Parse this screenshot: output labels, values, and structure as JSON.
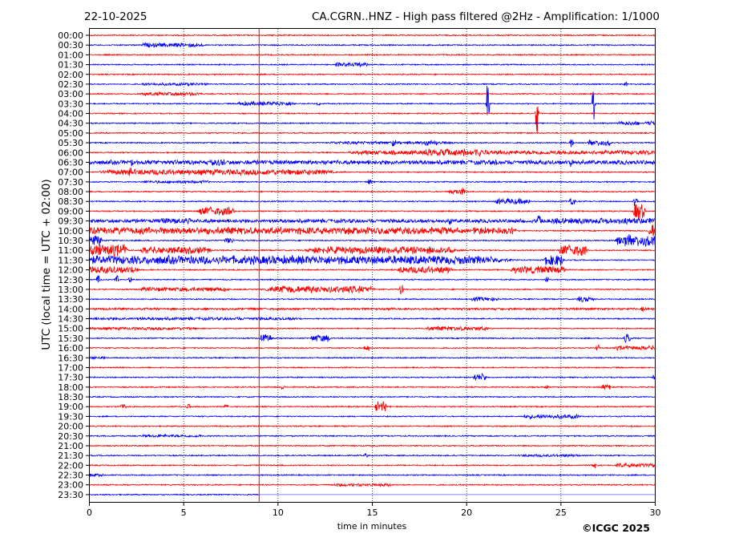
{
  "header": {
    "date": "22-10-2025",
    "title": "CA.CGRN..HNZ - High pass filtered @2Hz - Amplification: 1/1000"
  },
  "footer": {
    "copyright": "©ICGC 2025"
  },
  "chart_data": {
    "type": "line",
    "subtype": "helicorder",
    "title": "CA.CGRN..HNZ - High pass filtered @2Hz - Amplification: 1/1000",
    "xlabel": "time in minutes",
    "ylabel": "UTC (local time = UTC + 02:00)",
    "xlim": [
      0,
      30
    ],
    "xticks": [
      "0",
      "5",
      "10",
      "15",
      "20",
      "25",
      "30"
    ],
    "grid": "vertical dotted every 5 minutes",
    "current_time_marker_min": 9,
    "row_labels": [
      "00:00",
      "00:30",
      "01:00",
      "01:30",
      "02:00",
      "02:30",
      "03:00",
      "03:30",
      "04:00",
      "04:30",
      "05:00",
      "05:30",
      "06:00",
      "06:30",
      "07:00",
      "07:30",
      "08:00",
      "08:30",
      "09:00",
      "09:30",
      "10:00",
      "10:30",
      "11:00",
      "11:30",
      "12:00",
      "12:30",
      "13:00",
      "13:30",
      "14:00",
      "14:30",
      "15:00",
      "15:30",
      "16:00",
      "16:30",
      "17:00",
      "17:30",
      "18:00",
      "18:30",
      "19:00",
      "19:30",
      "20:00",
      "20:30",
      "21:00",
      "21:30",
      "22:00",
      "22:30",
      "23:00",
      "23:30"
    ],
    "colors": {
      "even_rows": "#ff0000",
      "odd_rows": "#0000ff",
      "marker": "#ff0000"
    },
    "events_format": [
      "row",
      "start_min",
      "end_min",
      "amplitude"
    ],
    "events": [
      [
        1,
        2.9,
        5.9,
        3
      ],
      [
        3,
        13.1,
        14.8,
        3
      ],
      [
        5,
        2.9,
        6.1,
        2
      ],
      [
        5,
        28.4,
        28.5,
        3
      ],
      [
        6,
        2.9,
        5.8,
        2.5
      ],
      [
        7,
        8.0,
        10.8,
        3
      ],
      [
        7,
        12.1,
        12.2,
        3
      ],
      [
        7,
        21.1,
        21.15,
        36
      ],
      [
        7,
        26.7,
        26.75,
        29
      ],
      [
        8,
        23.7,
        23.75,
        35
      ],
      [
        9,
        28.1,
        29.1,
        3
      ],
      [
        9,
        29.5,
        30,
        3
      ],
      [
        11,
        12.9,
        19.0,
        2
      ],
      [
        11,
        16.1,
        16.2,
        8
      ],
      [
        11,
        17.8,
        18.4,
        4
      ],
      [
        11,
        25.5,
        25.6,
        8
      ],
      [
        11,
        26.5,
        27.6,
        4
      ],
      [
        12,
        14.6,
        30,
        3
      ],
      [
        12,
        17.8,
        20.8,
        5
      ],
      [
        13,
        0,
        30,
        3
      ],
      [
        13,
        2.2,
        2.3,
        6
      ],
      [
        13,
        6.5,
        7.2,
        5
      ],
      [
        13,
        21.5,
        21.6,
        6
      ],
      [
        13,
        25.5,
        25.6,
        7
      ],
      [
        14,
        1.2,
        12.3,
        4
      ],
      [
        14,
        2.1,
        2.2,
        8
      ],
      [
        15,
        2.9,
        6.3,
        2
      ],
      [
        15,
        14.8,
        14.9,
        6
      ],
      [
        16,
        19.1,
        19.9,
        3
      ],
      [
        16,
        19.7,
        19.8,
        10
      ],
      [
        17,
        21.6,
        23.3,
        4
      ],
      [
        17,
        25.5,
        25.7,
        6
      ],
      [
        17,
        28.9,
        29.0,
        10
      ],
      [
        18,
        5.9,
        7.6,
        6
      ],
      [
        18,
        28.9,
        29.4,
        12
      ],
      [
        19,
        0,
        30,
        2.5
      ],
      [
        19,
        3.8,
        5.5,
        4
      ],
      [
        19,
        19.1,
        19.2,
        8
      ],
      [
        19,
        23.8,
        23.9,
        10
      ],
      [
        19,
        24.6,
        30,
        4
      ],
      [
        20,
        0,
        19.1,
        5
      ],
      [
        20,
        20.4,
        22.5,
        5
      ],
      [
        20,
        29.7,
        30,
        10
      ],
      [
        21,
        0,
        0.6,
        8
      ],
      [
        21,
        7.2,
        7.6,
        4
      ],
      [
        21,
        28.0,
        30,
        8
      ],
      [
        22,
        0,
        1.9,
        8
      ],
      [
        22,
        2.9,
        6.3,
        5
      ],
      [
        22,
        11.9,
        19.1,
        5
      ],
      [
        22,
        25.0,
        26.3,
        8
      ],
      [
        23,
        0,
        20.8,
        6
      ],
      [
        23,
        24.2,
        25.1,
        8
      ],
      [
        24,
        0,
        2.5,
        5
      ],
      [
        24,
        16.5,
        19.1,
        5
      ],
      [
        24,
        22.5,
        25.1,
        5
      ],
      [
        25,
        0.4,
        0.5,
        6
      ],
      [
        25,
        1.4,
        1.5,
        6
      ],
      [
        25,
        2.1,
        2.2,
        5
      ],
      [
        25,
        24.2,
        24.3,
        6
      ],
      [
        26,
        2.9,
        7.2,
        3
      ],
      [
        26,
        9.7,
        14.8,
        5
      ],
      [
        26,
        16.5,
        16.6,
        8
      ],
      [
        27,
        20.3,
        21.6,
        3
      ],
      [
        27,
        25.9,
        26.7,
        4
      ],
      [
        28,
        0,
        30,
        1.5
      ],
      [
        28,
        29.3,
        29.4,
        4
      ],
      [
        29,
        0.4,
        10.8,
        2
      ],
      [
        30,
        0,
        5.5,
        2
      ],
      [
        30,
        18.0,
        21.0,
        3
      ],
      [
        31,
        9.1,
        9.6,
        5
      ],
      [
        31,
        11.8,
        12.7,
        5
      ],
      [
        31,
        28.4,
        28.7,
        6
      ],
      [
        32,
        14.6,
        14.8,
        5
      ],
      [
        32,
        26.9,
        27.0,
        5
      ],
      [
        32,
        28.0,
        30,
        3
      ],
      [
        33,
        0,
        0.8,
        2
      ],
      [
        35,
        20.4,
        21.0,
        5
      ],
      [
        35,
        29.9,
        30,
        4
      ],
      [
        36,
        10.2,
        10.3,
        4
      ],
      [
        36,
        24.2,
        24.3,
        4
      ],
      [
        36,
        27.2,
        27.6,
        4
      ],
      [
        38,
        1.7,
        1.9,
        5
      ],
      [
        38,
        5.2,
        5.3,
        5
      ],
      [
        38,
        7.2,
        7.3,
        4
      ],
      [
        38,
        15.2,
        15.7,
        8
      ],
      [
        39,
        23.1,
        25.9,
        3
      ],
      [
        41,
        2.9,
        5.9,
        2
      ],
      [
        43,
        14.6,
        14.7,
        3
      ],
      [
        43,
        22.9,
        25.9,
        2
      ],
      [
        44,
        26.7,
        26.8,
        5
      ],
      [
        44,
        28.0,
        30,
        3
      ],
      [
        45,
        0,
        0.8,
        2
      ],
      [
        46,
        13.1,
        16.0,
        2
      ]
    ]
  }
}
